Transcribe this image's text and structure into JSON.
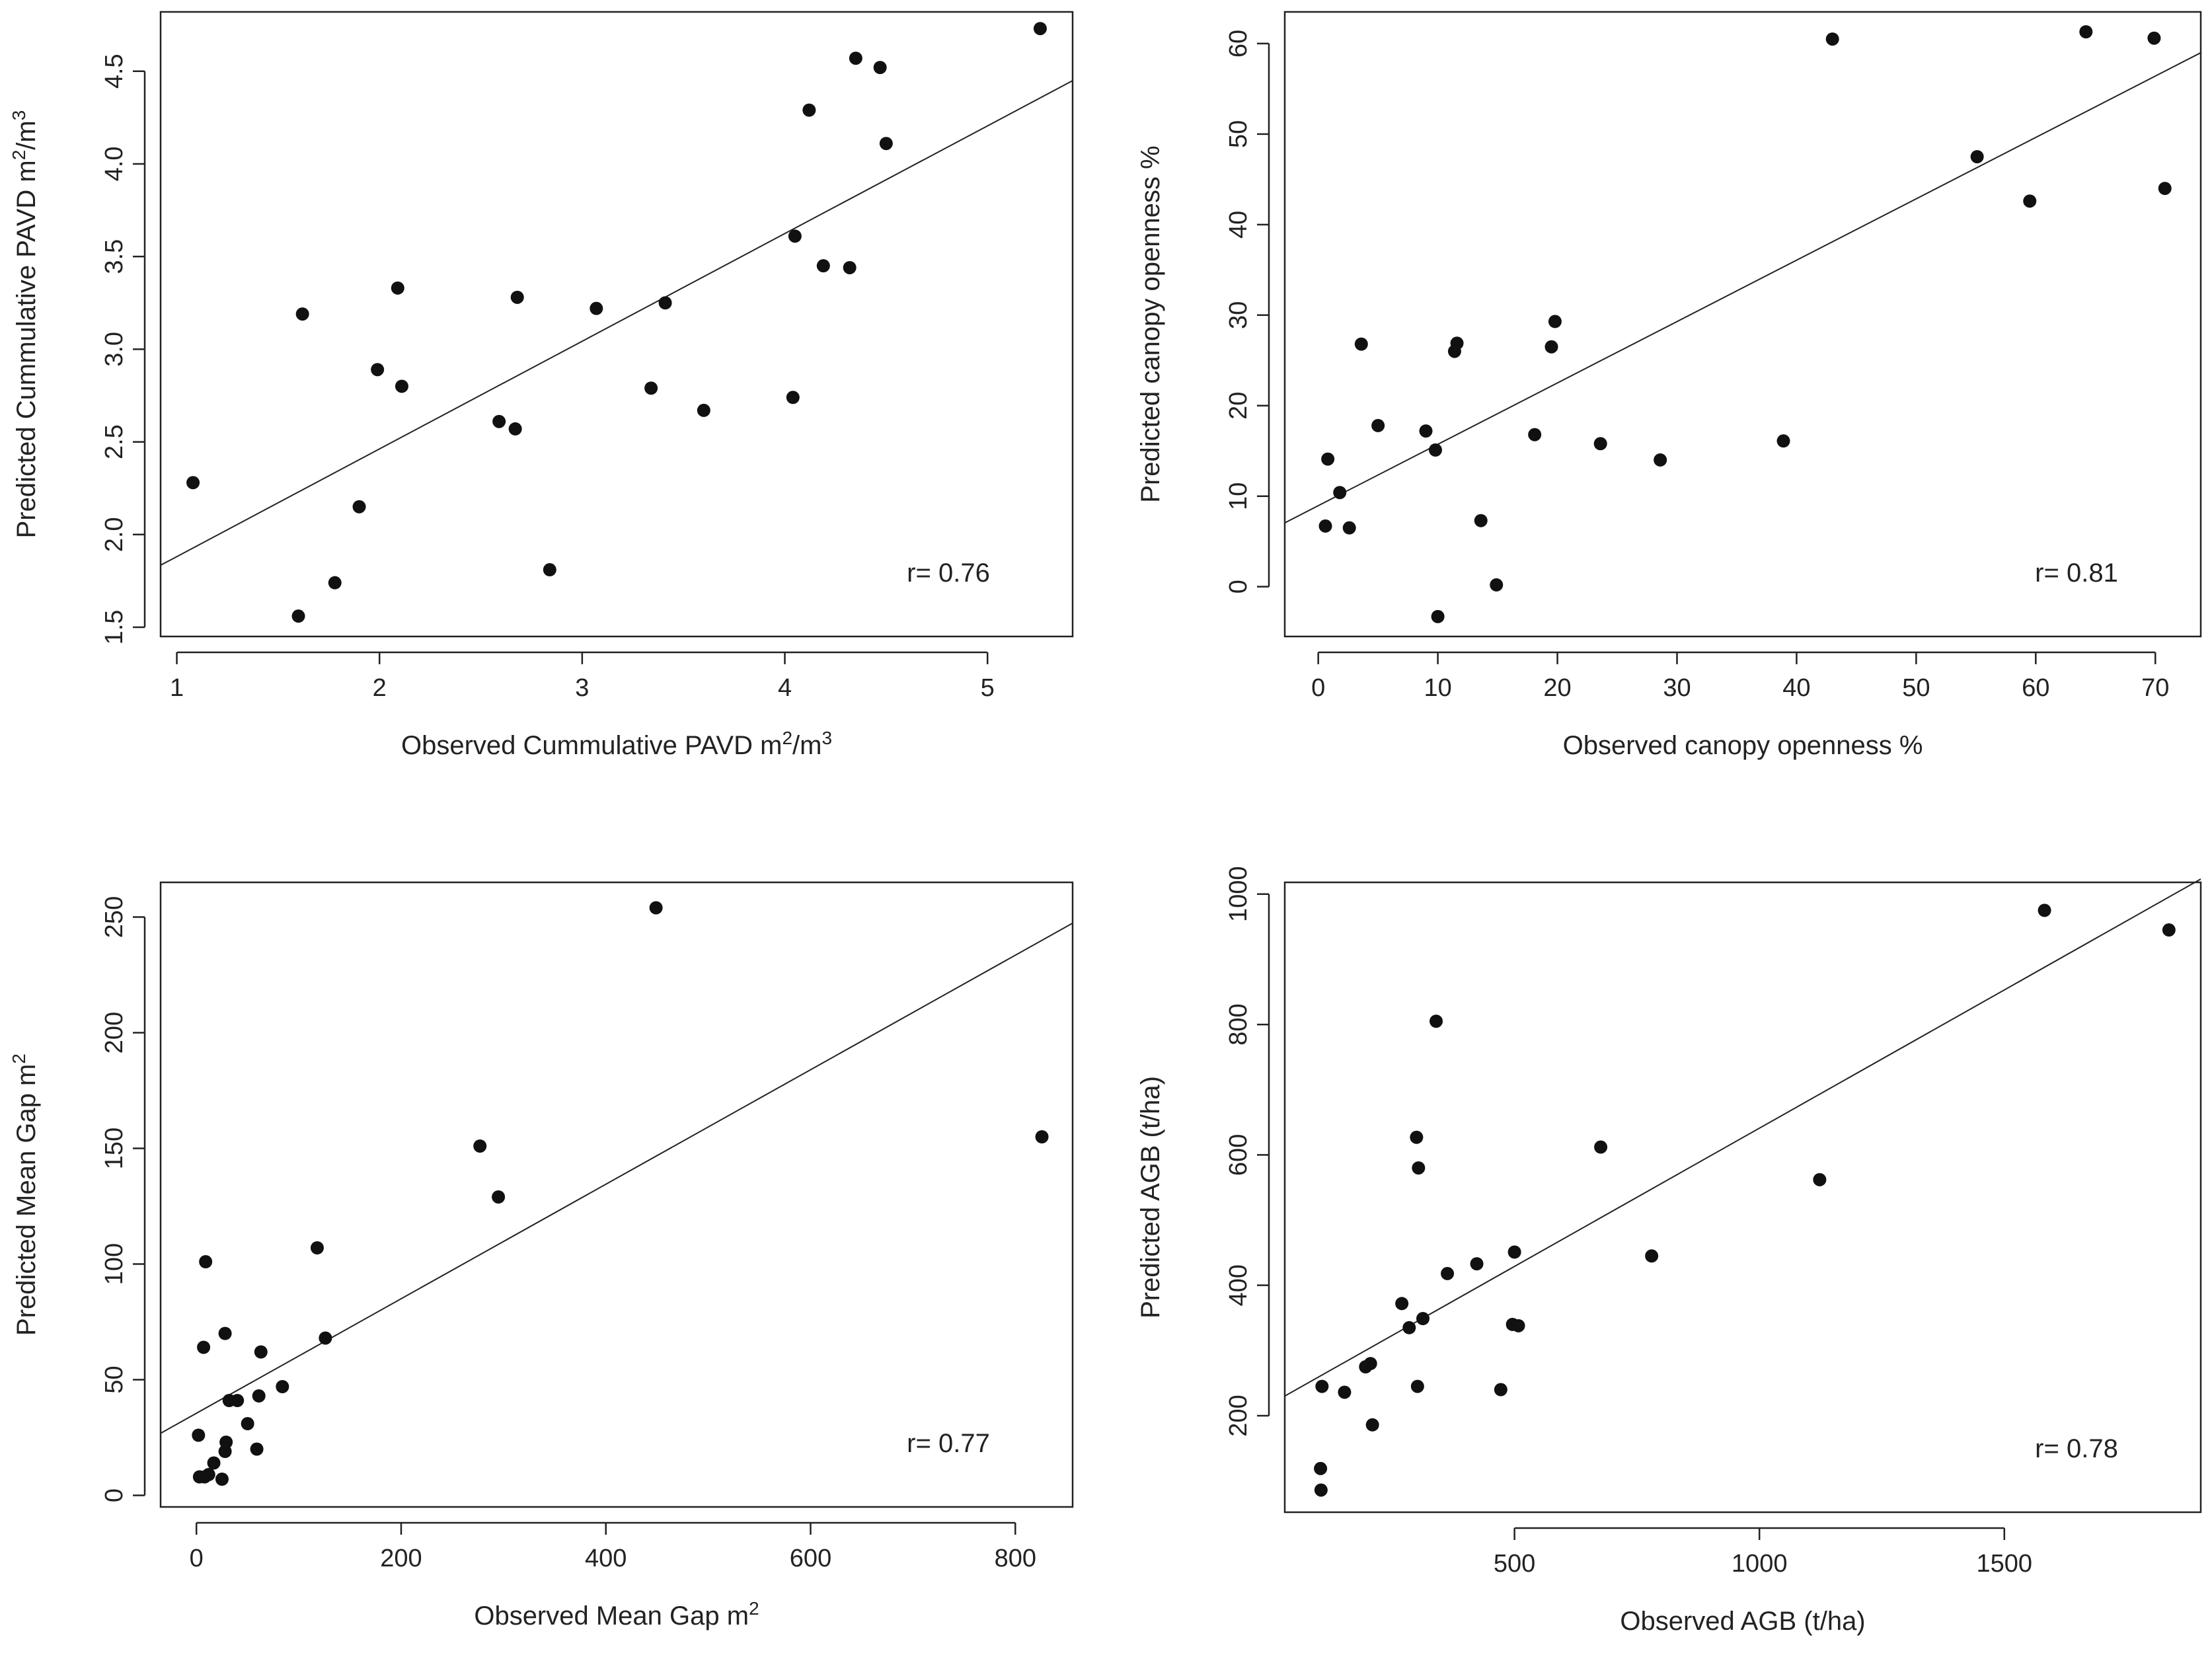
{
  "chart_data": [
    {
      "type": "scatter",
      "title": "",
      "xlabel": "Observed Cummulative PAVD m²/m³",
      "ylabel": "Predicted Cummulative PAVD m²/m³",
      "xlim": [
        0.92,
        5.42
      ],
      "ylim": [
        1.45,
        4.82
      ],
      "xticks": [
        1,
        2,
        3,
        4,
        5
      ],
      "yticks": [
        1.5,
        2.0,
        2.5,
        3.0,
        3.5,
        4.0,
        4.5
      ],
      "xtick_labels": [
        "1",
        "2",
        "3",
        "4",
        "5"
      ],
      "ytick_labels": [
        "1.5",
        "2.0",
        "2.5",
        "3.0",
        "3.5",
        "4.0",
        "4.5"
      ],
      "annotation": "r= 0.76",
      "fit_line": {
        "slope": 0.581,
        "intercept": 1.3
      },
      "points": [
        [
          1.08,
          2.28
        ],
        [
          1.6,
          1.56
        ],
        [
          1.62,
          3.19
        ],
        [
          1.78,
          1.74
        ],
        [
          1.9,
          2.15
        ],
        [
          1.99,
          2.89
        ],
        [
          2.09,
          3.33
        ],
        [
          2.11,
          2.8
        ],
        [
          2.59,
          2.61
        ],
        [
          2.67,
          2.57
        ],
        [
          2.68,
          3.28
        ],
        [
          2.84,
          1.81
        ],
        [
          3.07,
          3.22
        ],
        [
          3.34,
          2.79
        ],
        [
          3.41,
          3.25
        ],
        [
          3.6,
          2.67
        ],
        [
          4.04,
          2.74
        ],
        [
          4.05,
          3.61
        ],
        [
          4.12,
          4.29
        ],
        [
          4.19,
          3.45
        ],
        [
          4.32,
          3.44
        ],
        [
          4.35,
          4.57
        ],
        [
          4.47,
          4.52
        ],
        [
          4.5,
          4.11
        ],
        [
          5.26,
          4.73
        ]
      ]
    },
    {
      "type": "scatter",
      "title": "",
      "xlabel": "Observed canopy openness %",
      "ylabel": "Predicted canopy openness %",
      "xlim": [
        -2.8,
        73.8
      ],
      "ylim": [
        -5.5,
        63.5
      ],
      "xticks": [
        0,
        10,
        20,
        30,
        40,
        50,
        60,
        70
      ],
      "yticks": [
        0,
        10,
        20,
        30,
        40,
        50,
        60
      ],
      "xtick_labels": [
        "0",
        "10",
        "20",
        "30",
        "40",
        "50",
        "60",
        "70"
      ],
      "ytick_labels": [
        "0",
        "10",
        "20",
        "30",
        "40",
        "50",
        "60"
      ],
      "annotation": "r= 0.81",
      "fit_line": {
        "slope": 0.678,
        "intercept": 8.95
      },
      "points": [
        [
          0.6,
          6.7
        ],
        [
          0.8,
          14.1
        ],
        [
          1.8,
          10.4
        ],
        [
          2.6,
          6.5
        ],
        [
          3.6,
          26.8
        ],
        [
          5.0,
          17.8
        ],
        [
          9.0,
          17.2
        ],
        [
          9.8,
          15.1
        ],
        [
          10.0,
          -3.3
        ],
        [
          11.4,
          26.0
        ],
        [
          11.6,
          26.9
        ],
        [
          13.6,
          7.3
        ],
        [
          14.9,
          0.2
        ],
        [
          18.1,
          16.8
        ],
        [
          19.5,
          26.5
        ],
        [
          19.8,
          29.3
        ],
        [
          23.6,
          15.8
        ],
        [
          28.6,
          14.0
        ],
        [
          38.9,
          16.1
        ],
        [
          43.0,
          60.5
        ],
        [
          55.1,
          47.5
        ],
        [
          59.5,
          42.6
        ],
        [
          64.2,
          61.3
        ],
        [
          69.9,
          60.6
        ],
        [
          70.8,
          44.0
        ]
      ]
    },
    {
      "type": "scatter",
      "title": "",
      "xlabel": "Observed Mean Gap m²",
      "ylabel": "Predicted Mean Gap m²",
      "xlim": [
        -35,
        856
      ],
      "ylim": [
        -5,
        265
      ],
      "xticks": [
        0,
        200,
        400,
        600,
        800
      ],
      "yticks": [
        0,
        50,
        100,
        150,
        200,
        250
      ],
      "xtick_labels": [
        "0",
        "200",
        "400",
        "600",
        "800"
      ],
      "ytick_labels": [
        "0",
        "50",
        "100",
        "150",
        "200",
        "250"
      ],
      "annotation": "r= 0.77",
      "fit_line": {
        "slope": 0.2475,
        "intercept": 35.5
      },
      "points": [
        [
          2,
          26
        ],
        [
          3,
          8
        ],
        [
          7,
          64
        ],
        [
          8,
          8
        ],
        [
          9,
          101
        ],
        [
          12,
          9
        ],
        [
          17,
          14
        ],
        [
          25,
          7
        ],
        [
          28,
          70
        ],
        [
          28,
          19
        ],
        [
          29,
          23
        ],
        [
          32,
          41
        ],
        [
          40,
          41
        ],
        [
          50,
          31
        ],
        [
          59,
          20
        ],
        [
          61,
          43
        ],
        [
          63,
          62
        ],
        [
          84,
          47
        ],
        [
          118,
          107
        ],
        [
          126,
          68
        ],
        [
          277,
          151
        ],
        [
          295,
          129
        ],
        [
          449,
          254
        ],
        [
          826,
          155
        ]
      ]
    },
    {
      "type": "scatter",
      "title": "",
      "xlabel": "Observed AGB (t/ha)",
      "ylabel": "Predicted AGB (t/ha)",
      "xlim": [
        31,
        1901
      ],
      "ylim": [
        52,
        1018
      ],
      "xticks": [
        500,
        1000,
        1500
      ],
      "yticks": [
        200,
        400,
        600,
        800,
        1000
      ],
      "xtick_labels": [
        "500",
        "1000",
        "1500"
      ],
      "ytick_labels": [
        "200",
        "400",
        "600",
        "800",
        "1000"
      ],
      "annotation": "r= 0.78",
      "fit_line": {
        "slope": 0.424,
        "intercept": 217
      },
      "points": [
        [
          104,
          119
        ],
        [
          105,
          86
        ],
        [
          107,
          245
        ],
        [
          153,
          236
        ],
        [
          196,
          275
        ],
        [
          206,
          280
        ],
        [
          210,
          186
        ],
        [
          270,
          372
        ],
        [
          285,
          335
        ],
        [
          300,
          627
        ],
        [
          302,
          245
        ],
        [
          304,
          580
        ],
        [
          313,
          349
        ],
        [
          340,
          805
        ],
        [
          363,
          418
        ],
        [
          423,
          433
        ],
        [
          472,
          240
        ],
        [
          496,
          340
        ],
        [
          500,
          451
        ],
        [
          508,
          338
        ],
        [
          676,
          612
        ],
        [
          780,
          445
        ],
        [
          1123,
          562
        ],
        [
          1582,
          975
        ],
        [
          1836,
          945
        ]
      ]
    }
  ]
}
